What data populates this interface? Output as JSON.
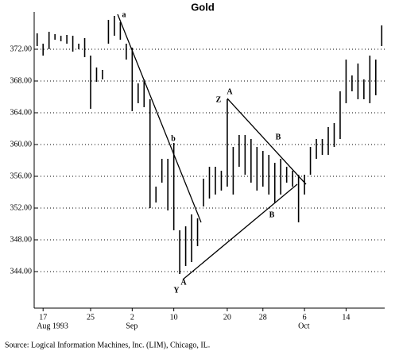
{
  "chart_data": {
    "type": "hilo",
    "title": "Gold",
    "categories": [
      null,
      "17",
      null,
      null,
      null,
      null,
      null,
      null,
      null,
      "25",
      null,
      null,
      null,
      null,
      null,
      null,
      "2",
      null,
      null,
      null,
      null,
      null,
      null,
      "10",
      null,
      null,
      null,
      null,
      null,
      null,
      null,
      null,
      "20",
      null,
      null,
      null,
      null,
      null,
      "28",
      null,
      null,
      null,
      null,
      null,
      null,
      "6",
      null,
      null,
      null,
      null,
      null,
      null,
      "14",
      null,
      null,
      null,
      null,
      null,
      null
    ],
    "month_labels": [
      {
        "text": "Aug 1993",
        "index": 1
      },
      {
        "text": "Sep",
        "index": 16
      },
      {
        "text": "Oct",
        "index": 45
      }
    ],
    "high": [
      374.0,
      372.7,
      374.2,
      373.9,
      373.7,
      373.8,
      373.7,
      372.7,
      373.4,
      371.2,
      369.7,
      369.4,
      375.7,
      376.2,
      375.4,
      372.7,
      372.2,
      367.7,
      368.2,
      365.7,
      354.7,
      358.2,
      358.2,
      360.2,
      349.2,
      349.7,
      351.2,
      350.7,
      355.7,
      357.2,
      357.2,
      356.7,
      365.7,
      359.7,
      361.2,
      361.2,
      360.7,
      359.7,
      359.2,
      358.7,
      357.7,
      358.2,
      357.2,
      356.7,
      356.2,
      356.2,
      359.7,
      360.7,
      360.7,
      362.2,
      362.7,
      366.7,
      370.7,
      368.7,
      370.2,
      368.2,
      371.2,
      370.7,
      375.0
    ],
    "low": [
      372.4,
      371.2,
      372.0,
      373.2,
      373.0,
      372.7,
      371.7,
      372.0,
      371.0,
      364.5,
      367.9,
      368.2,
      372.7,
      373.7,
      373.2,
      370.7,
      364.2,
      365.2,
      364.7,
      352.0,
      352.7,
      355.2,
      351.7,
      349.2,
      343.7,
      344.7,
      345.2,
      347.2,
      352.2,
      353.2,
      353.7,
      354.2,
      354.7,
      353.7,
      357.2,
      356.2,
      355.2,
      354.2,
      354.7,
      353.7,
      352.7,
      353.7,
      355.2,
      354.7,
      350.2,
      353.7,
      356.2,
      358.2,
      358.7,
      358.7,
      359.7,
      360.7,
      365.2,
      366.7,
      365.7,
      365.7,
      365.2,
      366.2,
      372.4
    ],
    "color": "#000000",
    "ylim": [
      339.4,
      376.7
    ],
    "yticks": [
      {
        "value": 344,
        "label": "344.00"
      },
      {
        "value": 348,
        "label": "348.00"
      },
      {
        "value": 352,
        "label": "352.00"
      },
      {
        "value": 356,
        "label": "356.00"
      },
      {
        "value": 360,
        "label": "360.00"
      },
      {
        "value": 364,
        "label": "364.00"
      },
      {
        "value": 368,
        "label": "368.00"
      },
      {
        "value": 372,
        "label": "372.00"
      }
    ],
    "grid": true,
    "annotations": [
      "a",
      "b",
      "Z",
      "A",
      "B",
      "B",
      "A",
      "Y"
    ],
    "source": "Source: Logical Information Machines, Inc. (LIM), Chicago, IL."
  }
}
